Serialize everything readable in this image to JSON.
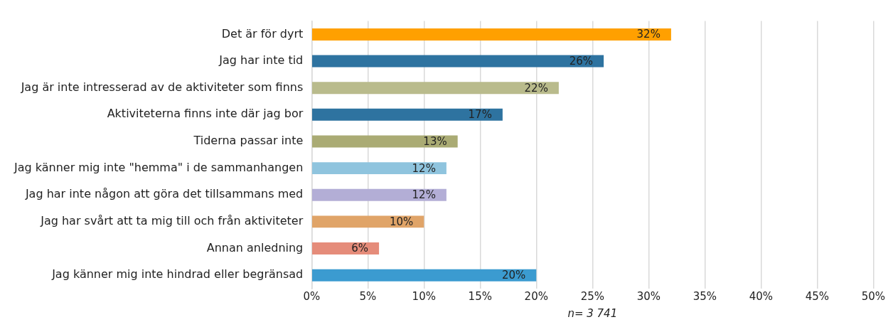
{
  "chart_data": {
    "type": "bar",
    "orientation": "horizontal",
    "categories": [
      "Det är för dyrt",
      "Jag har inte tid",
      "Jag är inte intresserad av de aktiviteter som finns",
      "Aktiviteterna finns inte där jag bor",
      "Tiderna passar inte",
      "Jag känner mig inte \"hemma\" i de sammanhangen",
      "Jag har inte någon att göra det tillsammans med",
      "Jag har svårt att ta mig till och från aktiviteter",
      "Annan anledning",
      "Jag känner mig inte hindrad eller begränsad"
    ],
    "values": [
      32,
      26,
      22,
      17,
      13,
      12,
      12,
      10,
      6,
      20
    ],
    "colors": [
      "#ffa000",
      "#2e73a0",
      "#b9bb8c",
      "#2e73a0",
      "#aaab74",
      "#8fc4de",
      "#b3aed6",
      "#e0a468",
      "#e58c7a",
      "#3b9bd0"
    ],
    "value_labels": [
      "32%",
      "26%",
      "22%",
      "17%",
      "13%",
      "12%",
      "12%",
      "10%",
      "6%",
      "20%"
    ],
    "xlim": [
      0,
      50
    ],
    "xticks": [
      {
        "value": 0,
        "label": "0%"
      },
      {
        "value": 5,
        "label": "5%"
      },
      {
        "value": 10,
        "label": "10%"
      },
      {
        "value": 15,
        "label": "15%"
      },
      {
        "value": 20,
        "label": "20%"
      },
      {
        "value": 25,
        "label": "25%"
      },
      {
        "value": 30,
        "label": "30%"
      },
      {
        "value": 35,
        "label": "35%"
      },
      {
        "value": 40,
        "label": "40%"
      },
      {
        "value": 45,
        "label": "45%"
      },
      {
        "value": 50,
        "label": "50%"
      }
    ],
    "grid": "x",
    "legend": false,
    "annotations": [
      "n= 3 741"
    ]
  }
}
